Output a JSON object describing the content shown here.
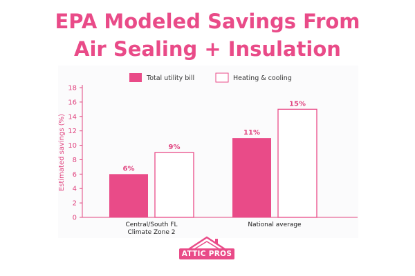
{
  "chart_data": {
    "type": "bar",
    "title_line1": "EPA Modeled Savings From",
    "title_line2": "Air Sealing + Insulation",
    "ylabel": "Estimated savings (%)",
    "categories": [
      "Central/South FL\nClimate Zone 2",
      "National average"
    ],
    "series": [
      {
        "name": "Total utility bill",
        "values": [
          6,
          11
        ],
        "labels": [
          "6%",
          "11%"
        ],
        "style": "filled"
      },
      {
        "name": "Heating & cooling",
        "values": [
          9,
          15
        ],
        "labels": [
          "9%",
          "15%"
        ],
        "style": "outline"
      }
    ],
    "ylim": [
      0,
      18
    ],
    "yticks": [
      0,
      2,
      4,
      6,
      8,
      10,
      12,
      14,
      16,
      18
    ],
    "legend_position": "top",
    "grid": false
  },
  "colors": {
    "accent": "#e94b88",
    "axis": "#e0447f",
    "text": "#222222"
  },
  "logo": {
    "text": "ATTIC PROS"
  }
}
